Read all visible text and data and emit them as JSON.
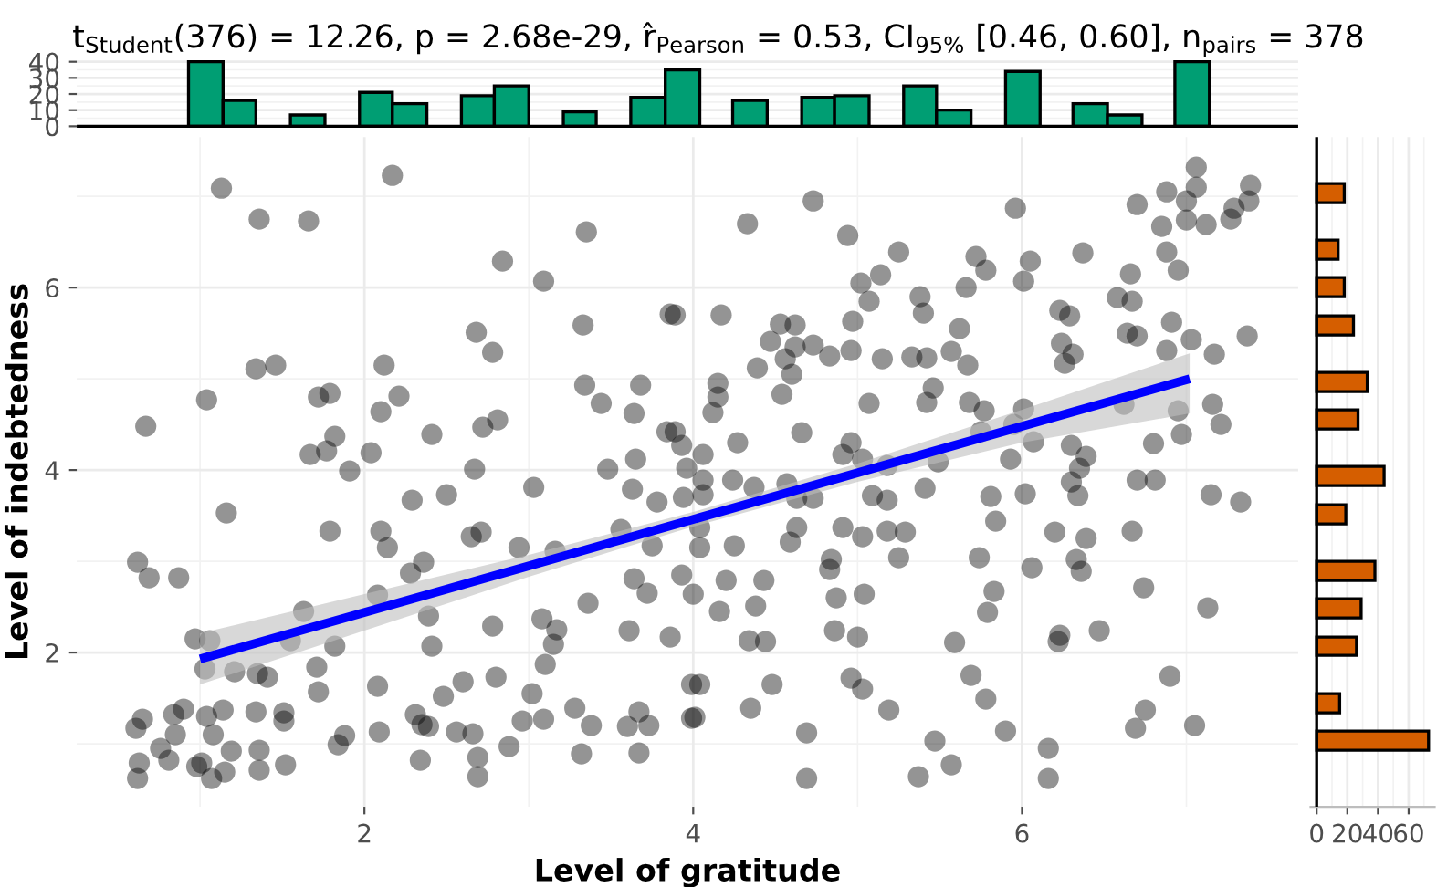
{
  "chart_data": [
    {
      "type": "histogram",
      "title": "t$_{Student}$(376) = 12.26, p = 2.68e-29, r̂$_{Pearson}$ = 0.53, CI$_{95%}$ [0.46, 0.60], n$_{pairs}$ = 378",
      "bins": [
        0.93,
        1.14,
        1.34,
        1.55,
        1.76,
        1.97,
        2.17,
        2.38,
        2.59,
        2.79,
        3.0,
        3.21,
        3.41,
        3.62,
        3.83,
        4.04,
        4.24,
        4.45,
        4.66,
        4.86,
        5.07,
        5.28,
        5.48,
        5.69,
        5.9,
        6.11,
        6.31,
        6.52,
        6.73,
        6.93,
        7.14
      ],
      "values": [
        40,
        16,
        0,
        7,
        0,
        21,
        14,
        0,
        19,
        25,
        0,
        9,
        0,
        18,
        35,
        0,
        16,
        0,
        18,
        19,
        0,
        25,
        10,
        0,
        34,
        0,
        14,
        7,
        0,
        40
      ],
      "color": "#009e73",
      "xlim": [
        0.25,
        7.68
      ],
      "ylim": [
        -2,
        42
      ],
      "yticks": [
        0,
        10,
        20,
        30,
        40
      ],
      "grid": true,
      "tick_labels": "y"
    },
    {
      "type": "scatter",
      "xlabel": "Level of gratitude",
      "ylabel": "Level of indebtedness",
      "xlim": [
        0.25,
        7.68
      ],
      "ylim": [
        0.31,
        7.65
      ],
      "xticks": [
        2,
        4,
        6
      ],
      "yticks": [
        2,
        4,
        6
      ],
      "grid": true,
      "series": [
        {
          "type": "scatter",
          "color": "#000000",
          "marker": "circle",
          "x": [
            1.13,
            2.17,
            1.36,
            1.66,
            3.35,
            2.84,
            3.09,
            3.86,
            2.68,
            2.78,
            3.33,
            1.34,
            1.46,
            2.12,
            1.04,
            0.67,
            1.72,
            1.79,
            2.21,
            2.1,
            3.34,
            3.68,
            3.44,
            3.64,
            2.41,
            2.72,
            2.81,
            1.82,
            1.67,
            1.77,
            1.91,
            2.04,
            2.67,
            3.03,
            2.29,
            2.5,
            3.48,
            3.65,
            3.63,
            3.84,
            3.78,
            1.16,
            1.79,
            2.1,
            2.14,
            2.65,
            2.71,
            2.94,
            3.16,
            3.56,
            3.75,
            0.62,
            0.69,
            0.87,
            2.28,
            2.36,
            2.08,
            2.39,
            1.63,
            2.78,
            3.08,
            3.17,
            3.36,
            3.64,
            3.72,
            3.61,
            3.86,
            0.97,
            1.06,
            1.55,
            1.82,
            2.41,
            3.15,
            1.03,
            1.21,
            1.35,
            1.41,
            1.71,
            1.72,
            2.08,
            2.48,
            2.6,
            2.8,
            3.1,
            3.02,
            3.28,
            0.61,
            0.65,
            0.84,
            0.9,
            0.85,
            1.04,
            1.14,
            1.34,
            1.51,
            1.51,
            1.08,
            2.31,
            2.35,
            2.39,
            2.56,
            2.66,
            2.09,
            1.84,
            1.88,
            2.96,
            3.09,
            3.38,
            3.6,
            3.67,
            3.73,
            2.88,
            3.32,
            3.67,
            2.69,
            2.69,
            2.34,
            1.52,
            1.36,
            1.36,
            1.19,
            1.15,
            1.07,
            0.98,
            0.76,
            0.81,
            0.63,
            0.62,
            1.01,
            3.99,
            3.99,
            3.89,
            4.17,
            4.73,
            4.33,
            4.94,
            5.96,
            5.02,
            5.07,
            5.14,
            5.25,
            4.97,
            4.96,
            5.15,
            5.38,
            5.4,
            5.33,
            5.42,
            5.57,
            5.62,
            5.67,
            5.66,
            5.72,
            5.78,
            6.05,
            6.01,
            6.37,
            6.23,
            6.29,
            6.24,
            6.26,
            6.31,
            6.58,
            6.66,
            6.67,
            6.64,
            6.7,
            6.91,
            6.88,
            7.03,
            7.17,
            7.37,
            6.7,
            6.88,
            7.06,
            7.06,
            7.0,
            7.0,
            7.12,
            6.85,
            7.27,
            7.29,
            7.38,
            7.39,
            6.88,
            6.95,
            4.53,
            4.62,
            4.47,
            4.56,
            4.62,
            4.73,
            4.83,
            4.39,
            4.6,
            4.15,
            4.15,
            4.12,
            4.54,
            4.66,
            5.07,
            5.46,
            5.42,
            5.68,
            5.77,
            6.01,
            5.95,
            6.07,
            5.75,
            6.62,
            6.95,
            7.16,
            7.21,
            6.97,
            6.8,
            3.89,
            3.93,
            4.06,
            4.27,
            3.96,
            4.06,
            4.06,
            3.94,
            4.24,
            4.37,
            4.57,
            4.63,
            4.73,
            4.91,
            4.96,
            5.03,
            5.18,
            5.09,
            5.18,
            5.41,
            5.49,
            5.93,
            5.81,
            6.02,
            5.84,
            6.3,
            6.39,
            6.35,
            6.3,
            6.34,
            6.7,
            6.81,
            7.15,
            7.33,
            4.04,
            4.04,
            4.25,
            4.63,
            4.59,
            4.91,
            5.03,
            5.18,
            5.29,
            5.25,
            4.84,
            4.83,
            5.74,
            6.06,
            6.2,
            6.39,
            6.33,
            6.36,
            6.67,
            6.74,
            7.13,
            3.93,
            4.0,
            4.2,
            4.43,
            4.38,
            4.16,
            4.87,
            5.04,
            5.83,
            5.79,
            6.47,
            6.23,
            6.22,
            5.59,
            5.0,
            4.86,
            4.44,
            4.34,
            4.04,
            4.01,
            4.48,
            4.35,
            4.96,
            5.03,
            5.19,
            5.69,
            5.78,
            5.9,
            5.47,
            5.57,
            5.37,
            6.16,
            6.16,
            4.69,
            4.69,
            6.9,
            6.75,
            6.69,
            7.05
          ],
          "values": [
            7.09,
            7.23,
            6.75,
            6.73,
            6.61,
            6.29,
            6.07,
            5.71,
            5.51,
            5.29,
            5.59,
            5.11,
            5.15,
            5.15,
            4.77,
            4.48,
            4.8,
            4.84,
            4.81,
            4.64,
            4.93,
            4.93,
            4.73,
            4.62,
            4.39,
            4.47,
            4.55,
            4.37,
            4.17,
            4.21,
            3.99,
            4.19,
            4.01,
            3.81,
            3.67,
            3.73,
            4.01,
            4.12,
            3.79,
            4.42,
            3.65,
            3.53,
            3.33,
            3.33,
            3.15,
            3.27,
            3.32,
            3.15,
            3.11,
            3.35,
            3.17,
            2.99,
            2.82,
            2.82,
            2.87,
            2.99,
            2.63,
            2.4,
            2.45,
            2.29,
            2.37,
            2.25,
            2.54,
            2.81,
            2.65,
            2.24,
            2.17,
            2.15,
            2.13,
            2.13,
            2.07,
            2.07,
            2.09,
            1.82,
            1.79,
            1.77,
            1.73,
            1.84,
            1.57,
            1.63,
            1.52,
            1.68,
            1.73,
            1.87,
            1.55,
            1.39,
            1.17,
            1.27,
            1.32,
            1.38,
            1.1,
            1.3,
            1.37,
            1.35,
            1.34,
            1.25,
            1.1,
            1.32,
            1.21,
            1.19,
            1.13,
            1.11,
            1.13,
            0.99,
            1.09,
            1.25,
            1.27,
            1.2,
            1.19,
            1.35,
            1.2,
            0.97,
            0.89,
            0.9,
            0.85,
            0.64,
            0.82,
            0.77,
            0.93,
            0.71,
            0.92,
            0.69,
            0.62,
            0.75,
            0.95,
            0.82,
            0.79,
            0.62,
            0.79,
            1.28,
            1.65,
            5.7,
            5.7,
            6.95,
            6.7,
            6.57,
            6.87,
            6.05,
            5.85,
            6.14,
            6.39,
            5.63,
            5.31,
            5.22,
            5.9,
            5.72,
            5.24,
            5.23,
            5.3,
            5.55,
            5.15,
            6.0,
            6.34,
            6.19,
            6.29,
            6.07,
            6.38,
            5.75,
            5.69,
            5.39,
            5.17,
            5.27,
            5.89,
            6.15,
            5.85,
            5.5,
            5.47,
            5.62,
            5.31,
            5.43,
            5.27,
            5.47,
            6.91,
            7.05,
            7.32,
            7.1,
            6.95,
            6.74,
            6.69,
            6.67,
            6.75,
            6.87,
            6.95,
            7.12,
            6.39,
            6.19,
            5.6,
            5.59,
            5.41,
            5.22,
            5.35,
            5.37,
            5.25,
            5.12,
            5.05,
            4.95,
            4.8,
            4.63,
            4.83,
            4.41,
            4.73,
            4.9,
            4.74,
            4.74,
            4.65,
            4.67,
            4.5,
            4.31,
            4.42,
            4.72,
            4.65,
            4.72,
            4.5,
            4.39,
            4.29,
            4.42,
            4.27,
            4.17,
            4.3,
            4.02,
            3.89,
            3.73,
            3.7,
            3.89,
            3.81,
            3.85,
            3.69,
            3.69,
            4.17,
            4.3,
            4.12,
            4.05,
            3.72,
            3.67,
            3.8,
            4.09,
            4.12,
            3.71,
            3.74,
            3.44,
            4.27,
            4.15,
            4.02,
            3.87,
            3.72,
            3.89,
            3.89,
            3.73,
            3.65,
            3.37,
            3.15,
            3.17,
            3.37,
            3.21,
            3.37,
            3.27,
            3.33,
            3.32,
            3.04,
            3.02,
            2.91,
            3.04,
            2.93,
            3.32,
            3.25,
            3.02,
            2.89,
            3.33,
            2.71,
            2.49,
            2.85,
            2.64,
            2.79,
            2.79,
            2.51,
            2.45,
            2.6,
            2.64,
            2.67,
            2.44,
            2.24,
            2.19,
            2.12,
            2.11,
            2.17,
            2.24,
            2.12,
            2.13,
            1.65,
            1.29,
            1.65,
            1.39,
            1.72,
            1.6,
            1.37,
            1.75,
            1.49,
            1.14,
            1.03,
            0.77,
            0.64,
            0.95,
            0.62,
            1.12,
            0.62,
            1.74,
            1.37,
            1.17,
            1.2
          ]
        },
        {
          "type": "line",
          "color": "#0000ff",
          "x": [
            1.0,
            2,
            3,
            4,
            5,
            6,
            7.02
          ],
          "values": [
            1.93,
            2.44,
            2.95,
            3.46,
            3.97,
            4.48,
            5.0
          ],
          "lower": [
            1.65,
            2.24,
            2.83,
            3.38,
            3.87,
            4.3,
            4.62
          ],
          "upper": [
            2.21,
            2.64,
            3.07,
            3.54,
            4.07,
            4.66,
            5.28
          ]
        }
      ]
    },
    {
      "type": "histogram",
      "orientation": "horizontal",
      "bins": [
        0.93,
        1.14,
        1.34,
        1.55,
        1.97,
        2.17,
        2.38,
        2.59,
        2.79,
        3.0,
        3.41,
        3.62,
        3.83,
        4.04,
        4.45,
        4.66,
        4.86,
        5.07,
        5.48,
        5.69,
        5.9,
        6.11,
        6.31,
        6.52,
        6.93,
        7.14
      ],
      "values": [
        73,
        0,
        15,
        0,
        26,
        0,
        29,
        0,
        38,
        0,
        19,
        0,
        44,
        0,
        27,
        0,
        33,
        0,
        24,
        0,
        18,
        0,
        14,
        0,
        18
      ],
      "color": "#d55e00",
      "xlim": [
        -4,
        77
      ],
      "xticks": [
        0,
        20,
        40,
        60
      ],
      "ylim": [
        0.31,
        7.65
      ],
      "grid": true,
      "tick_labels": "x"
    }
  ]
}
